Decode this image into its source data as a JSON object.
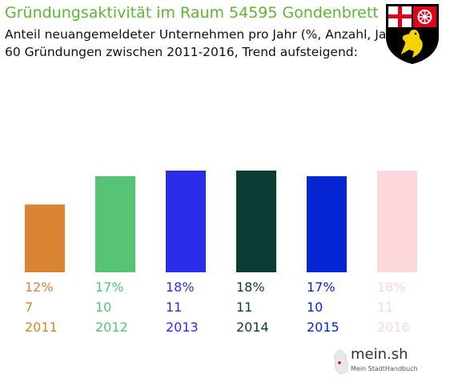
{
  "header": {
    "title": "Gründungsaktivität im Raum 54595 Gondenbrett",
    "subtitle_line1": "Anteil neuangemeldeter Unternehmen pro Jahr (%, Anzahl, Jahr)",
    "subtitle_line2": "60 Gründungen zwischen 2011-2016, Trend aufsteigend:"
  },
  "brand": {
    "name": "mein.sh",
    "tagline": "Mein StadtHandbuch"
  },
  "coat_of_arms_icon": "rhineland-palatinate-coat-of-arms-icon",
  "chart_data": {
    "type": "bar",
    "categories": [
      "2011",
      "2012",
      "2013",
      "2014",
      "2015",
      "2016"
    ],
    "values": [
      12,
      17,
      18,
      18,
      17,
      18
    ],
    "counts": [
      7,
      10,
      11,
      11,
      10,
      11
    ],
    "percent_labels": [
      "12%",
      "17%",
      "18%",
      "18%",
      "17%",
      "18%"
    ],
    "colors": [
      "#d98432",
      "#56c474",
      "#2a2ee8",
      "#0b3d35",
      "#0626d6",
      "#fcd7dc"
    ],
    "ylim": [
      0,
      18
    ]
  }
}
